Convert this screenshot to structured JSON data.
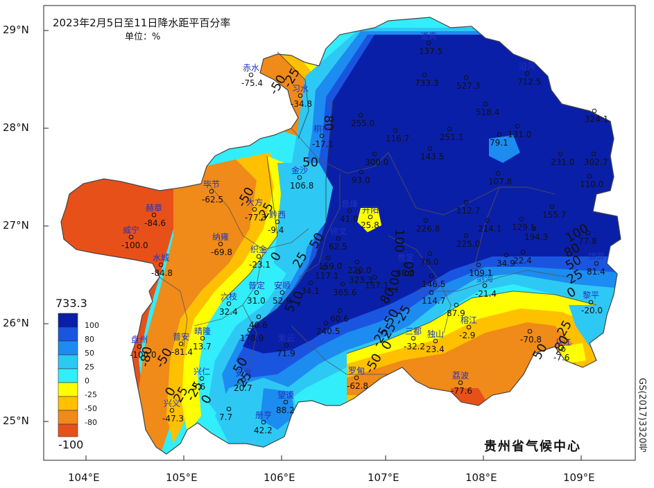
{
  "title": "2023年2月5日至11日降水距平百分率",
  "unit": "单位：%",
  "agency": "贵州省气候中心",
  "map_number": "GS(2017)3320号",
  "axes": {
    "lat_labels": [
      "29°N",
      "28°N",
      "27°N",
      "26°N",
      "25°N"
    ],
    "lon_labels": [
      "104°E",
      "105°E",
      "106°E",
      "107°E",
      "108°E",
      "109°E"
    ]
  },
  "legend": {
    "max_label": "733.3",
    "min_label": "-100",
    "levels": [
      "100",
      "80",
      "50",
      "25",
      "0",
      "-25",
      "-50",
      "-80"
    ],
    "colors": [
      "#0a1fa8",
      "#1a55e0",
      "#1c8cf0",
      "#2ec8f5",
      "#31eefa",
      "#ffff00",
      "#ffc000",
      "#f08a18",
      "#e8501a"
    ]
  },
  "contour_labels": [
    "-50",
    "-25",
    "80",
    "50",
    "-50",
    "-25",
    "0",
    "50",
    "25",
    "100",
    "100",
    "80",
    "50",
    "25",
    "0",
    "10",
    "5",
    "80",
    "-25",
    "-25",
    "-50",
    "-80",
    "50",
    "-25",
    "0",
    "25",
    "0",
    "25",
    "-50",
    "-25",
    "-80",
    "100",
    "80",
    "50",
    "25",
    "0",
    "50"
  ],
  "stations": [
    {
      "name": "赤水",
      "value": "-75.4"
    },
    {
      "name": "习水",
      "value": "-34.8"
    },
    {
      "name": "道真",
      "value": "137.5"
    },
    {
      "name": "",
      "value": "733.3"
    },
    {
      "name": "",
      "value": "527.3"
    },
    {
      "name": "沿河",
      "value": "712.5"
    },
    {
      "name": "",
      "value": "518.4"
    },
    {
      "name": "",
      "value": "255.0"
    },
    {
      "name": "",
      "value": "116.7"
    },
    {
      "name": "",
      "value": "251.1"
    },
    {
      "name": "",
      "value": "131.0"
    },
    {
      "name": "",
      "value": "324.1"
    },
    {
      "name": "桐梓",
      "value": "-17.1"
    },
    {
      "name": "",
      "value": "143.5"
    },
    {
      "name": "",
      "value": "79.1"
    },
    {
      "name": "",
      "value": "300.0"
    },
    {
      "name": "",
      "value": "231.0"
    },
    {
      "name": "",
      "value": "302.7"
    },
    {
      "name": "金沙",
      "value": "106.8"
    },
    {
      "name": "",
      "value": "93.0"
    },
    {
      "name": "",
      "value": "107.8"
    },
    {
      "name": "",
      "value": "110.0"
    },
    {
      "name": "毕节",
      "value": "-62.5"
    },
    {
      "name": "大方",
      "value": "-77.3"
    },
    {
      "name": "赫章",
      "value": "-84.6"
    },
    {
      "name": "黔西",
      "value": "-9.4"
    },
    {
      "name": "息烽",
      "value": "41.0"
    },
    {
      "name": "开阳",
      "value": "25.8"
    },
    {
      "name": "",
      "value": "226.8"
    },
    {
      "name": "",
      "value": "112.7"
    },
    {
      "name": "",
      "value": "214.1"
    },
    {
      "name": "",
      "value": "129.5"
    },
    {
      "name": "",
      "value": "155.7"
    },
    {
      "name": "威宁",
      "value": "-100.0"
    },
    {
      "name": "纳雍",
      "value": "-69.8"
    },
    {
      "name": "修文",
      "value": "62.5"
    },
    {
      "name": "",
      "value": "225.0"
    },
    {
      "name": "",
      "value": "194.3"
    },
    {
      "name": "",
      "value": "77.8"
    },
    {
      "name": "织金",
      "value": "-23.1"
    },
    {
      "name": "",
      "value": "159.0"
    },
    {
      "name": "",
      "value": "220.0"
    },
    {
      "name": "贵定",
      "value": "48.0"
    },
    {
      "name": "",
      "value": "76.0"
    },
    {
      "name": "",
      "value": "34.9"
    },
    {
      "name": "",
      "value": "22.4"
    },
    {
      "name": "水城",
      "value": "-84.8"
    },
    {
      "name": "",
      "value": "117.1"
    },
    {
      "name": "",
      "value": "323.3"
    },
    {
      "name": "",
      "value": "109.1"
    },
    {
      "name": "锦屏",
      "value": "81.4"
    },
    {
      "name": "普定",
      "value": "31.0"
    },
    {
      "name": "安顺",
      "value": "52.9"
    },
    {
      "name": "",
      "value": "34.1"
    },
    {
      "name": "",
      "value": "365.6"
    },
    {
      "name": "",
      "value": "157.1"
    },
    {
      "name": "",
      "value": "146.5"
    },
    {
      "name": "剑河",
      "value": "-21.4"
    },
    {
      "name": "六枝",
      "value": "32.4"
    },
    {
      "name": "",
      "value": "114.7"
    },
    {
      "name": "黎平",
      "value": "-20.0"
    },
    {
      "name": "",
      "value": "40.6"
    },
    {
      "name": "",
      "value": "87.9"
    },
    {
      "name": "",
      "value": "60.6"
    },
    {
      "name": "",
      "value": "178.9"
    },
    {
      "name": "",
      "value": "240.5"
    },
    {
      "name": "榕江",
      "value": "-2.9"
    },
    {
      "name": "晴隆",
      "value": "13.7"
    },
    {
      "name": "",
      "value": "-70.8"
    },
    {
      "name": "盘州",
      "value": "-100.0"
    },
    {
      "name": "普安",
      "value": "-81.4"
    },
    {
      "name": "三都",
      "value": "-32.2"
    },
    {
      "name": "独山",
      "value": "23.4"
    },
    {
      "name": "从江",
      "value": "-7.6"
    },
    {
      "name": "紫云",
      "value": "71.9"
    },
    {
      "name": "兴仁",
      "value": "5.6"
    },
    {
      "name": "罗甸",
      "value": "-62.8"
    },
    {
      "name": "荔波",
      "value": "-77.6"
    },
    {
      "name": "安龙",
      "value": "20.7"
    },
    {
      "name": "望谟",
      "value": "88.2"
    },
    {
      "name": "兴义",
      "value": "-47.3"
    },
    {
      "name": "",
      "value": "7.7"
    },
    {
      "name": "册亨",
      "value": "42.2"
    }
  ]
}
